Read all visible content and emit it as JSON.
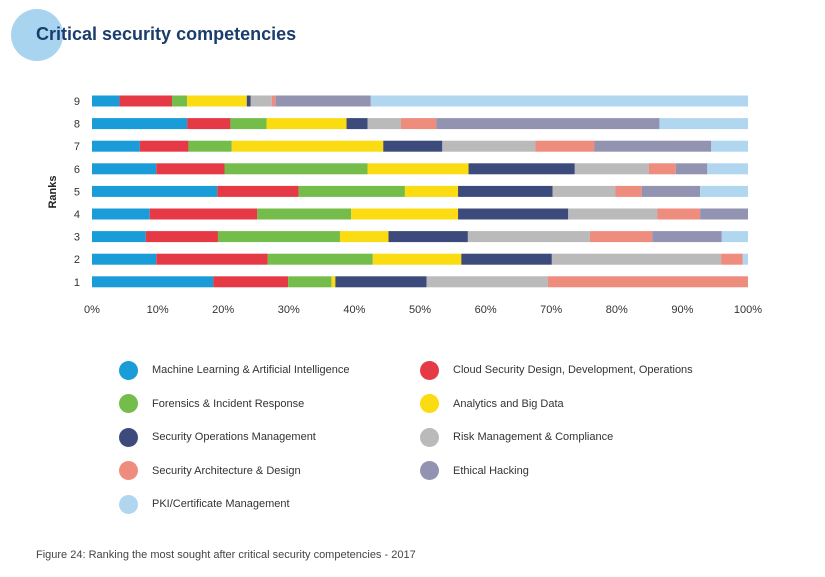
{
  "header": {
    "title": "Critical security competencies"
  },
  "caption": "Figure 24: Ranking the most sought after critical security competencies - 2017",
  "chart_data": {
    "type": "bar",
    "orientation": "horizontal",
    "stacked": true,
    "normalized": true,
    "ylabel": "Ranks",
    "xlim": [
      0,
      100
    ],
    "x_ticks": [
      "0%",
      "10%",
      "20%",
      "30%",
      "40%",
      "50%",
      "60%",
      "70%",
      "80%",
      "90%",
      "100%"
    ],
    "categories": [
      "9",
      "8",
      "7",
      "6",
      "5",
      "4",
      "3",
      "2",
      "1"
    ],
    "legend_position": "bottom",
    "grid": false,
    "series": [
      {
        "name": "Machine Learning & Artificial Intelligence",
        "color": "#1a9cd8",
        "values": [
          4.2,
          14.5,
          7.3,
          9.8,
          19.1,
          8.8,
          8.2,
          9.8,
          18.5
        ]
      },
      {
        "name": "Cloud Security Design, Development, Operations",
        "color": "#e63946",
        "values": [
          8.0,
          6.6,
          7.4,
          10.4,
          12.4,
          16.4,
          11.0,
          17.0,
          11.4
        ]
      },
      {
        "name": "Forensics & Incident Response",
        "color": "#74bd4b",
        "values": [
          2.3,
          5.5,
          6.6,
          21.8,
          16.2,
          14.3,
          18.6,
          16.0,
          6.6
        ]
      },
      {
        "name": "Analytics and Big Data",
        "color": "#fbdb11",
        "values": [
          9.1,
          12.2,
          23.1,
          15.4,
          8.1,
          16.3,
          7.4,
          13.5,
          0.6
        ]
      },
      {
        "name": "Security Operations Management",
        "color": "#3c4b7b",
        "values": [
          0.6,
          3.2,
          9.0,
          16.2,
          14.4,
          16.8,
          12.1,
          13.8,
          13.9
        ]
      },
      {
        "name": "Risk Management & Compliance",
        "color": "#bababa",
        "values": [
          3.2,
          5.1,
          14.2,
          11.3,
          9.6,
          13.6,
          18.6,
          25.8,
          18.5
        ]
      },
      {
        "name": "Security Architecture & Design",
        "color": "#ee8c7e",
        "values": [
          0.6,
          5.4,
          9.0,
          4.1,
          4.0,
          6.5,
          9.5,
          3.3,
          30.5
        ]
      },
      {
        "name": "Ethical Hacking",
        "color": "#9293b1",
        "values": [
          14.5,
          34.0,
          17.8,
          4.8,
          8.9,
          7.3,
          10.6,
          0,
          0
        ]
      },
      {
        "name": "PKI/Certificate Management",
        "color": "#b1d6ef",
        "values": [
          57.5,
          13.5,
          5.6,
          6.2,
          7.3,
          0,
          4.0,
          0.8,
          0
        ]
      }
    ]
  }
}
